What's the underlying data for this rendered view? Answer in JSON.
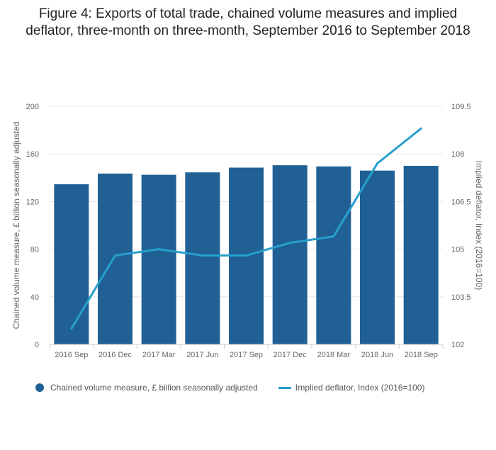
{
  "title_line1": "Figure 4: Exports of total trade, chained volume measures and implied",
  "title_line2": "deflator, three-month on three-month, September 2016 to September 2018",
  "chart_data": {
    "type": "bar",
    "title": "Figure 4: Exports of total trade, chained volume measures and implied deflator, three-month on three-month, September 2016 to September 2018",
    "categories": [
      "2016 Sep",
      "2016 Dec",
      "2017 Mar",
      "2017 Jun",
      "2017 Sep",
      "2017 Dec",
      "2018 Mar",
      "2018 Jun",
      "2018 Sep"
    ],
    "series": [
      {
        "name": "Chained volume measure, £ billion seasonally adjusted",
        "type": "bar",
        "axis": "left",
        "color": "#206095",
        "values": [
          134.5,
          143.5,
          142.5,
          144.5,
          148.5,
          150.5,
          149.5,
          146,
          150
        ]
      },
      {
        "name": "Implied deflator, Index (2016=100)",
        "type": "line",
        "axis": "right",
        "color": "#27a0cc",
        "values": [
          102.5,
          104.8,
          105.0,
          104.8,
          104.8,
          105.2,
          105.4,
          107.7,
          108.8
        ]
      }
    ],
    "ylabel": "Chained volume measure, £ billion seasonally adjusted",
    "y2label": "Implied deflator, Index (2016=100)",
    "ylim": [
      0,
      200
    ],
    "yticks": [
      "0",
      "40",
      "80",
      "120",
      "160",
      "200"
    ],
    "y2lim": [
      102,
      109.5
    ],
    "y2ticks": [
      "102",
      "103.5",
      "105",
      "106.5",
      "108",
      "109.5"
    ],
    "grid": true,
    "legend": "bottom"
  }
}
